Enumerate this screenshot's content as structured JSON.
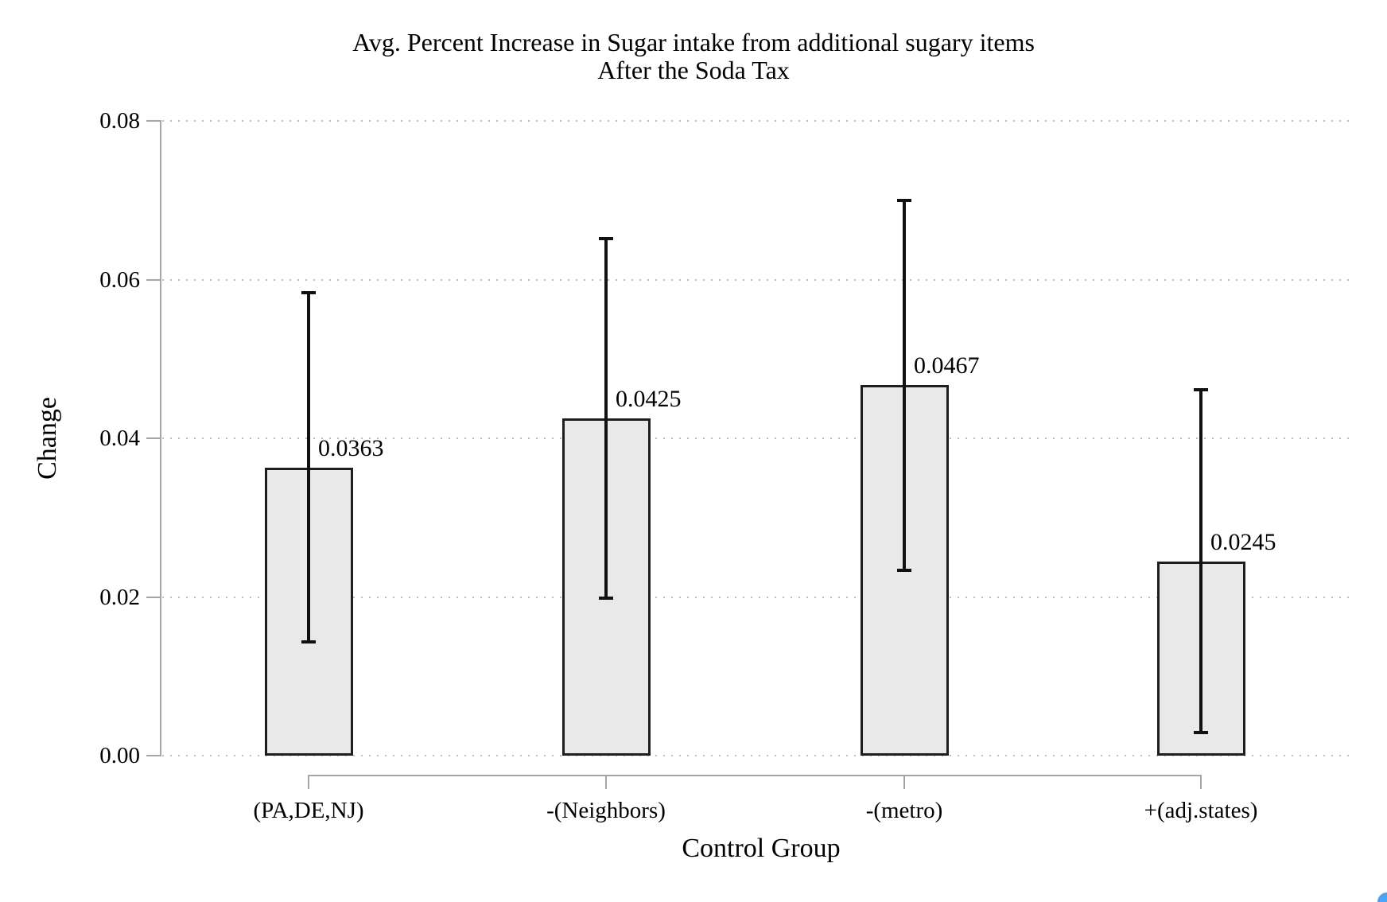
{
  "title": {
    "line1": "Avg. Percent Increase in Sugar intake from additional sugary items",
    "line2": "After the Soda Tax"
  },
  "axes": {
    "y_label": "Change",
    "x_label": "Control Group"
  },
  "chart_data": {
    "type": "bar",
    "title": "Avg. Percent Increase in Sugar intake from additional sugary items After the Soda Tax",
    "xlabel": "Control Group",
    "ylabel": "Change",
    "categories": [
      "(PA,DE,NJ)",
      "-(Neighbors)",
      "-(metro)",
      "+(adj.states)"
    ],
    "values": [
      0.0363,
      0.0425,
      0.0467,
      0.0245
    ],
    "value_labels": [
      "0.0363",
      "0.0425",
      "0.0467",
      "0.0245"
    ],
    "error_low": [
      0.0143,
      0.0198,
      0.0234,
      0.0029
    ],
    "error_high": [
      0.0583,
      0.0652,
      0.07,
      0.0461
    ],
    "ylim": [
      0,
      0.08
    ],
    "y_tick_values": [
      0,
      0.02,
      0.04,
      0.06,
      0.08
    ],
    "y_tick_labels": [
      "0.00",
      "0.02",
      "0.04",
      "0.06",
      "0.08"
    ],
    "grid": "horizontal dotted",
    "legend": "none",
    "bar_color": "#e9e9e9",
    "bar_border_color": "#1e1e1e",
    "error_color": "#111111"
  },
  "colors": {
    "axis": "#a6a6a6",
    "grid": "#bdbdbd",
    "text": "#000000",
    "corner_dot": "#4fa3f4"
  }
}
